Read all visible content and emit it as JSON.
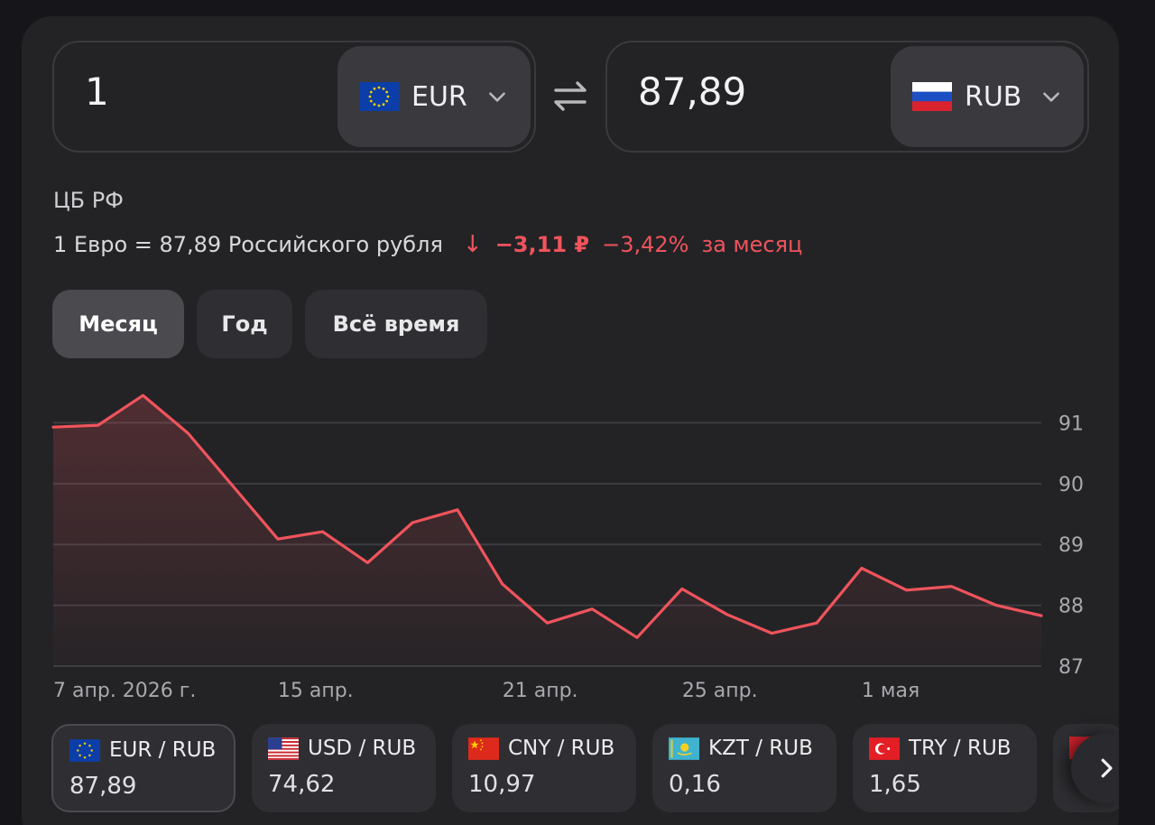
{
  "converter": {
    "from": {
      "amount": "1",
      "currency": "EUR",
      "flag_icon": "eu-flag-icon"
    },
    "to": {
      "amount": "87,89",
      "currency": "RUB",
      "flag_icon": "russia-flag-icon"
    }
  },
  "source_label": "ЦБ РФ",
  "rate": {
    "text": "1 Евро = 87,89 Российского рубля",
    "arrow": "↓",
    "delta_abs": "−3,11 ₽",
    "delta_pct": "−3,42%",
    "period": "за месяц"
  },
  "tabs": [
    {
      "label": "Месяц",
      "active": true
    },
    {
      "label": "Год",
      "active": false
    },
    {
      "label": "Всё время",
      "active": false
    }
  ],
  "chart_data": {
    "type": "area",
    "x": [
      "7 апр. 2026 г.",
      "",
      "",
      "",
      "",
      "15 апр.",
      "",
      "",
      "",
      "",
      "21 апр.",
      "",
      "",
      "",
      "25 апр.",
      "",
      "",
      "",
      "1 мая",
      "",
      "",
      "",
      ""
    ],
    "values": [
      90.93,
      90.96,
      91.45,
      90.83,
      89.96,
      89.09,
      89.21,
      88.7,
      89.36,
      89.57,
      88.35,
      87.71,
      87.94,
      87.47,
      88.27,
      87.85,
      87.54,
      87.71,
      88.61,
      88.25,
      88.31,
      88.0,
      87.83
    ],
    "x_tick_labels": [
      "7 апр. 2026 г.",
      "15 апр.",
      "21 апр.",
      "25 апр.",
      "1 мая"
    ],
    "y_ticks": [
      "91",
      "90",
      "89",
      "88",
      "87"
    ],
    "ylim": [
      87,
      91.6
    ],
    "grid": true,
    "line_color": "#f0545c"
  },
  "pairs": [
    {
      "label": "EUR / RUB",
      "value": "87,89",
      "flag_icon": "eu-flag-icon",
      "active": true
    },
    {
      "label": "USD / RUB",
      "value": "74,62",
      "flag_icon": "usa-flag-icon",
      "active": false
    },
    {
      "label": "CNY / RUB",
      "value": "10,97",
      "flag_icon": "china-flag-icon",
      "active": false
    },
    {
      "label": "KZT / RUB",
      "value": "0,16",
      "flag_icon": "kazakhstan-flag-icon",
      "active": false
    },
    {
      "label": "TRY / RUB",
      "value": "1,65",
      "flag_icon": "turkey-flag-icon",
      "active": false
    }
  ],
  "colors": {
    "accent_negative": "#f0545c",
    "card_bg": "#232326",
    "chip_bg": "#2f2f33"
  }
}
